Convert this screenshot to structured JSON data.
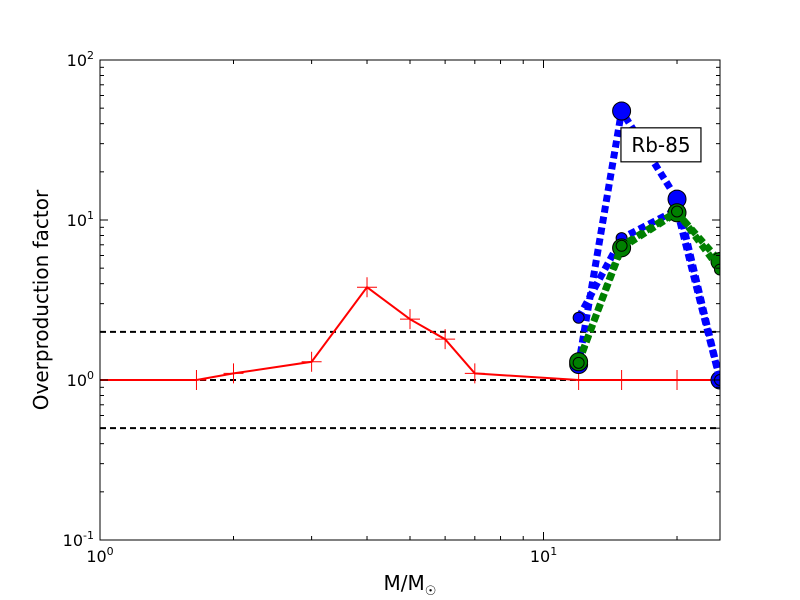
{
  "chart_data": {
    "type": "line",
    "xscale": "log",
    "yscale": "log",
    "xlim": [
      1,
      25
    ],
    "ylim": [
      0.1,
      100
    ],
    "grid": false,
    "xlabel": "M/M",
    "xlabel_subscript": "☉",
    "ylabel": "Overproduction factor",
    "x_ticks": [
      {
        "value": 1,
        "base": "10",
        "exp": "0"
      },
      {
        "value": 10,
        "base": "10",
        "exp": "1"
      }
    ],
    "y_ticks": [
      {
        "value": 0.1,
        "base": "10",
        "exp": "-1"
      },
      {
        "value": 1,
        "base": "10",
        "exp": "0"
      },
      {
        "value": 10,
        "base": "10",
        "exp": "1"
      },
      {
        "value": 100,
        "base": "10",
        "exp": "2"
      }
    ],
    "annotation": {
      "text": "Rb-85",
      "x": 18.4,
      "y": 29.5
    },
    "reference_lines": [
      {
        "y": 2.0,
        "color": "#000000",
        "style": "dashed"
      },
      {
        "y": 1.0,
        "color": "#000000",
        "style": "dashed"
      },
      {
        "y": 0.5,
        "color": "#000000",
        "style": "dashed"
      }
    ],
    "series": [
      {
        "color": "#ff0000",
        "style": "solid",
        "marker": "plus",
        "x": [
          1.0,
          1.65,
          2.0,
          3.0,
          4.0,
          5.0,
          6.0,
          7.0,
          12.0,
          15.0,
          20.0,
          25.0
        ],
        "y": [
          1.0,
          1.0,
          1.1,
          1.3,
          3.8,
          2.4,
          1.8,
          1.1,
          1.0,
          1.0,
          1.0,
          1.0
        ]
      },
      {
        "color": "#0000ff",
        "style": "dotted-heavy",
        "marker": "circle",
        "x": [
          12.0,
          15.0,
          20.0,
          25.0
        ],
        "y": [
          1.25,
          48.0,
          13.5,
          1.0
        ]
      },
      {
        "color": "#0000ff",
        "style": "dotted-heavy",
        "marker": "circle-small",
        "x": [
          12.0,
          15.0,
          20.0,
          25.0
        ],
        "y": [
          2.45,
          7.7,
          11.6,
          1.0
        ]
      },
      {
        "color": "#008000",
        "style": "dotted-heavy",
        "marker": "circle",
        "x": [
          12.0,
          15.0,
          20.0,
          25.0
        ],
        "y": [
          1.3,
          6.7,
          11.1,
          5.5
        ]
      },
      {
        "color": "#008000",
        "style": "dotted-heavy",
        "marker": "circle-small",
        "x": [
          12.0,
          15.0,
          20.0,
          25.0
        ],
        "y": [
          1.28,
          6.9,
          11.3,
          4.9
        ]
      }
    ]
  }
}
